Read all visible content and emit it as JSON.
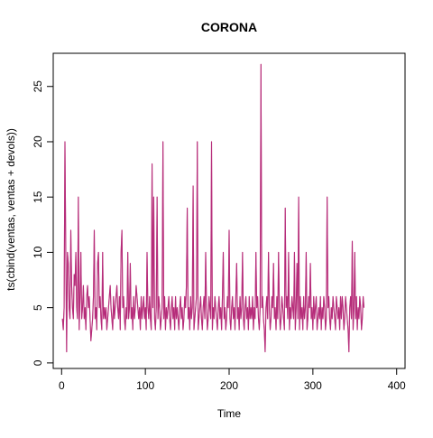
{
  "chart_data": {
    "type": "line",
    "title": "CORONA",
    "xlabel": "Time",
    "ylabel": "ts(cbind(ventas, ventas + devols))",
    "xlim": [
      -10,
      410
    ],
    "ylim": [
      -0.5,
      28
    ],
    "x_ticks": [
      "0",
      "100",
      "200",
      "300",
      "400"
    ],
    "y_ticks": [
      "0",
      "5",
      "10",
      "15",
      "20",
      "25"
    ],
    "grid": false,
    "legend": "none",
    "series": [
      {
        "color": "#cf2f64",
        "x_start": 1,
        "values": [
          4,
          3,
          5,
          20,
          10,
          1,
          10,
          9,
          5,
          4,
          12,
          7,
          5,
          4,
          8,
          7,
          10,
          5,
          4,
          15,
          3,
          6,
          10,
          4,
          5,
          7,
          4,
          5,
          3,
          6,
          7,
          5,
          6,
          4,
          2,
          3,
          4,
          6,
          12,
          4,
          5,
          3,
          9,
          10,
          5,
          6,
          4,
          3,
          10,
          4,
          5,
          4,
          5,
          3,
          4,
          5,
          6,
          7,
          5,
          4,
          3,
          6,
          4,
          5,
          6,
          7,
          5,
          4,
          6,
          3,
          10,
          12,
          5,
          6,
          4,
          3,
          5,
          4,
          10,
          4,
          5,
          9,
          4,
          5,
          3,
          6,
          4,
          5,
          7,
          6,
          5,
          4,
          5,
          3,
          6,
          4,
          5,
          6,
          4,
          5,
          3,
          10,
          5,
          4,
          6,
          4,
          3,
          18,
          5,
          15,
          4,
          3,
          5,
          15,
          4,
          6,
          5,
          3,
          4,
          5,
          20,
          4,
          6,
          3,
          5,
          4,
          5,
          6,
          4,
          3,
          5,
          6,
          4,
          5,
          3,
          6,
          4,
          5,
          4,
          3,
          5,
          6,
          4,
          5,
          3,
          4,
          6,
          5,
          7,
          14,
          4,
          5,
          3,
          6,
          4,
          5,
          16,
          3,
          4,
          5,
          6,
          20,
          3,
          4,
          5,
          6,
          4,
          3,
          5,
          6,
          4,
          10,
          5,
          3,
          4,
          6,
          5,
          4,
          20,
          3,
          5,
          4,
          6,
          5,
          4,
          3,
          5,
          6,
          4,
          5,
          3,
          6,
          10,
          4,
          5,
          3,
          4,
          6,
          5,
          12,
          4,
          3,
          5,
          6,
          4,
          5,
          3,
          6,
          9,
          4,
          5,
          3,
          6,
          4,
          5,
          10,
          4,
          3,
          5,
          6,
          4,
          5,
          3,
          6,
          4,
          5,
          4,
          6,
          3,
          5,
          4,
          10,
          5,
          6,
          4,
          3,
          5,
          27,
          5,
          6,
          4,
          3,
          1,
          5,
          6,
          4,
          10,
          5,
          3,
          4,
          6,
          5,
          9,
          4,
          5,
          3,
          6,
          4,
          10,
          5,
          3,
          4,
          6,
          5,
          4,
          3,
          14,
          5,
          6,
          4,
          10,
          3,
          5,
          4,
          6,
          5,
          4,
          10,
          3,
          5,
          9,
          4,
          15,
          3,
          6,
          4,
          5,
          3,
          6,
          4,
          5,
          10,
          3,
          4,
          6,
          5,
          9,
          4,
          5,
          3,
          6,
          4,
          5,
          6,
          3,
          4,
          5,
          4,
          6,
          3,
          5,
          4,
          6,
          5,
          3,
          4,
          15,
          5,
          6,
          4,
          3,
          5,
          4,
          6,
          5,
          4,
          3,
          6,
          5,
          4,
          5,
          3,
          6,
          4,
          6,
          5,
          3,
          4,
          6,
          5,
          4,
          3,
          1,
          5,
          6,
          4,
          11,
          3,
          5,
          10,
          4,
          6,
          3,
          5,
          4,
          6,
          5,
          3,
          4,
          6,
          5
        ]
      },
      {
        "color": "#a02a8c",
        "x_start": 1,
        "values": [
          4,
          3,
          5,
          20,
          10,
          1,
          10,
          9,
          5,
          4,
          12,
          7,
          5,
          4,
          8,
          7,
          10,
          5,
          4,
          15,
          3,
          6,
          10,
          4,
          5,
          7,
          4,
          5,
          3,
          6,
          7,
          5,
          6,
          4,
          2,
          3,
          4,
          6,
          12,
          4,
          5,
          3,
          9,
          10,
          5,
          6,
          4,
          3,
          10,
          4,
          5,
          4,
          5,
          3,
          4,
          5,
          6,
          7,
          5,
          4,
          3,
          6,
          4,
          5,
          6,
          7,
          5,
          4,
          6,
          3,
          10,
          12,
          5,
          6,
          4,
          3,
          5,
          4,
          10,
          4,
          5,
          9,
          4,
          5,
          3,
          6,
          4,
          5,
          7,
          6,
          5,
          4,
          5,
          3,
          6,
          4,
          5,
          6,
          4,
          5,
          3,
          10,
          5,
          4,
          6,
          4,
          3,
          18,
          5,
          15,
          4,
          3,
          5,
          15,
          4,
          6,
          5,
          3,
          4,
          5,
          20,
          4,
          6,
          3,
          5,
          4,
          5,
          6,
          4,
          3,
          5,
          6,
          4,
          5,
          3,
          6,
          4,
          5,
          4,
          3,
          5,
          6,
          4,
          5,
          3,
          4,
          6,
          5,
          7,
          14,
          4,
          5,
          3,
          6,
          4,
          5,
          16,
          3,
          4,
          5,
          6,
          20,
          3,
          4,
          5,
          6,
          4,
          3,
          5,
          6,
          4,
          10,
          5,
          3,
          4,
          6,
          5,
          4,
          20,
          3,
          5,
          4,
          6,
          5,
          4,
          3,
          5,
          6,
          4,
          5,
          3,
          6,
          10,
          4,
          5,
          3,
          4,
          6,
          5,
          12,
          4,
          3,
          5,
          6,
          4,
          5,
          3,
          6,
          9,
          4,
          5,
          3,
          6,
          4,
          5,
          10,
          4,
          3,
          5,
          6,
          4,
          5,
          3,
          6,
          4,
          5,
          4,
          6,
          3,
          5,
          4,
          10,
          5,
          6,
          4,
          3,
          5,
          27,
          5,
          6,
          4,
          3,
          1,
          5,
          6,
          4,
          10,
          5,
          3,
          4,
          6,
          5,
          9,
          4,
          5,
          3,
          6,
          4,
          10,
          5,
          3,
          4,
          6,
          5,
          4,
          3,
          14,
          5,
          6,
          4,
          10,
          3,
          5,
          4,
          6,
          5,
          4,
          10,
          3,
          5,
          9,
          4,
          15,
          3,
          6,
          4,
          5,
          3,
          6,
          4,
          5,
          10,
          3,
          4,
          6,
          5,
          9,
          4,
          5,
          3,
          6,
          4,
          5,
          6,
          3,
          4,
          5,
          4,
          6,
          3,
          5,
          4,
          6,
          5,
          3,
          4,
          15,
          5,
          6,
          4,
          3,
          5,
          4,
          6,
          5,
          4,
          3,
          6,
          5,
          4,
          5,
          3,
          6,
          4,
          6,
          5,
          3,
          4,
          6,
          5,
          4,
          3,
          1,
          5,
          6,
          4,
          11,
          3,
          5,
          10,
          4,
          6,
          3,
          5,
          4,
          6,
          5,
          3,
          4,
          6,
          5
        ]
      }
    ]
  }
}
